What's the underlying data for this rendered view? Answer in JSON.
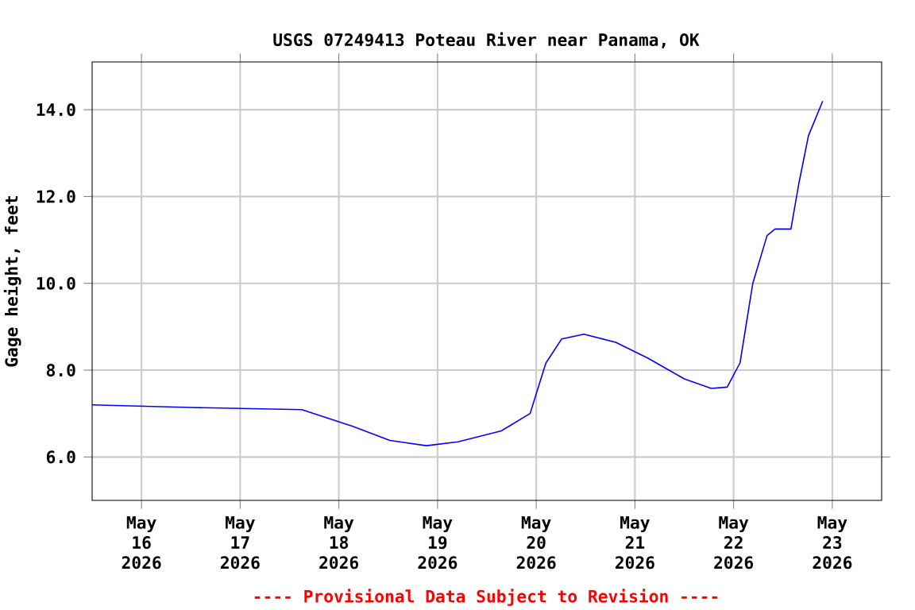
{
  "chart_data": {
    "type": "line",
    "title": "USGS 07249413 Poteau River near Panama, OK",
    "ylabel": "Gage height, feet",
    "x": [
      "2026-05-15T12:00",
      "2026-05-16T12:00",
      "2026-05-17T15:00",
      "2026-05-18T03:30",
      "2026-05-18T12:24",
      "2026-05-18T21:18",
      "2026-05-19T05:00",
      "2026-05-19T15:30",
      "2026-05-19T22:30",
      "2026-05-20T02:20",
      "2026-05-20T06:12",
      "2026-05-20T11:36",
      "2026-05-20T19:20",
      "2026-05-21T03:06",
      "2026-05-21T12:00",
      "2026-05-21T18:34",
      "2026-05-21T22:26",
      "2026-05-22T01:34",
      "2026-05-22T04:40",
      "2026-05-22T08:08",
      "2026-05-22T10:04",
      "2026-05-22T13:56",
      "2026-05-22T15:52",
      "2026-05-22T18:12",
      "2026-05-22T21:40"
    ],
    "series": [
      {
        "color": "#0000ff",
        "values": [
          7.2,
          7.14,
          7.09,
          6.7,
          6.38,
          6.26,
          6.35,
          6.6,
          7.0,
          8.16,
          8.72,
          8.83,
          8.64,
          8.28,
          7.8,
          7.58,
          7.61,
          8.17,
          10.0,
          11.1,
          11.25,
          11.25,
          12.3,
          13.4,
          14.2
        ]
      }
    ],
    "xlim": [
      "2026-05-15T12:00",
      "2026-05-23T12:00"
    ],
    "ylim": [
      5.0,
      15.1
    ],
    "xticks": [
      {
        "value": "2026-05-16",
        "label": "May 16 2026"
      },
      {
        "value": "2026-05-17",
        "label": "May 17 2026"
      },
      {
        "value": "2026-05-18",
        "label": "May 18 2026"
      },
      {
        "value": "2026-05-19",
        "label": "May 19 2026"
      },
      {
        "value": "2026-05-20",
        "label": "May 20 2026"
      },
      {
        "value": "2026-05-21",
        "label": "May 21 2026"
      },
      {
        "value": "2026-05-22",
        "label": "May 22 2026"
      },
      {
        "value": "2026-05-23",
        "label": "May 23 2026"
      }
    ],
    "yticks": [
      {
        "value": 6,
        "label": "6.0"
      },
      {
        "value": 8,
        "label": "8.0"
      },
      {
        "value": 10,
        "label": "10.0"
      },
      {
        "value": 12,
        "label": "12.0"
      },
      {
        "value": 14,
        "label": "14.0"
      }
    ],
    "annotations": [
      "---- Provisional Data Subject to Revision ----"
    ],
    "grid": true,
    "marker": "none",
    "line_style": "solid"
  }
}
